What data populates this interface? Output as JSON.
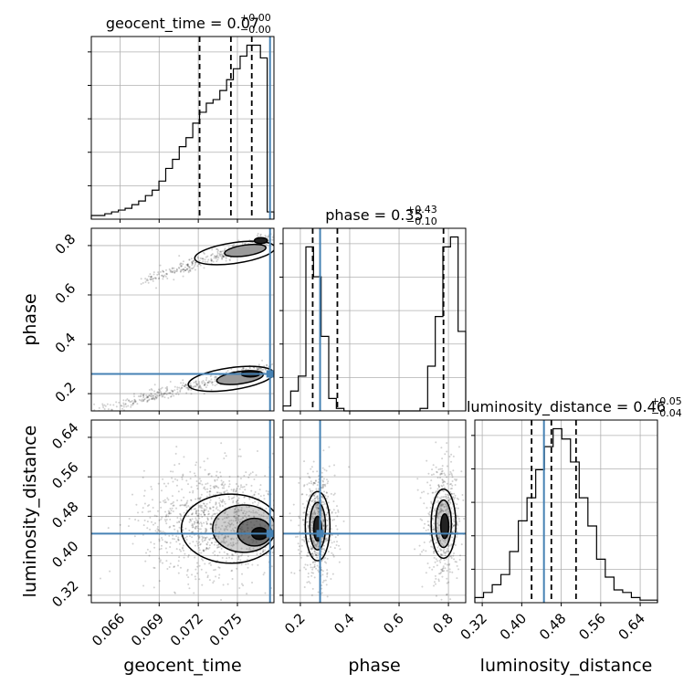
{
  "chart_data": {
    "type": "corner",
    "parameters": [
      "geocent_time",
      "phase",
      "luminosity_distance"
    ],
    "axis_labels": {
      "geocent_time": "geocent_time",
      "phase": "phase",
      "luminosity_distance": "luminosity_distance"
    },
    "titles": [
      {
        "param": "geocent_time",
        "main": "geocent_time = 0.07",
        "sup": "+0.00",
        "sub": "−0.00"
      },
      {
        "param": "phase",
        "main": "phase = 0.35",
        "sup": "+0.43",
        "sub": "−0.10"
      },
      {
        "param": "luminosity_distance",
        "main": "luminosity_distance = 0.46",
        "sup": "+0.05",
        "sub": "−0.04"
      }
    ],
    "ranges": {
      "geocent_time": [
        0.0638,
        0.0778
      ],
      "phase": [
        0.13,
        0.87
      ],
      "luminosity_distance": [
        0.305,
        0.675
      ]
    },
    "ticks": {
      "geocent_time": [
        "0.066",
        "0.069",
        "0.072",
        "0.075"
      ],
      "phase": [
        "0.2",
        "0.4",
        "0.6",
        "0.8"
      ],
      "luminosity_distance": [
        "0.32",
        "0.40",
        "0.48",
        "0.56",
        "0.64"
      ]
    },
    "truth": {
      "geocent_time": 0.0775,
      "phase": 0.28,
      "luminosity_distance": 0.445
    },
    "quantiles": {
      "geocent_time": [
        0.0721,
        0.0745,
        0.0761
      ],
      "phase": [
        0.25,
        0.35,
        0.78
      ],
      "luminosity_distance": [
        0.42,
        0.46,
        0.51
      ]
    },
    "histograms": {
      "geocent_time": [
        2,
        2,
        3,
        4,
        5,
        6,
        8,
        10,
        13,
        16,
        21,
        28,
        33,
        40,
        45,
        53,
        59,
        64,
        66,
        71,
        77,
        83,
        90,
        96,
        96,
        89,
        4
      ],
      "phase": [
        2,
        8,
        14,
        66,
        54,
        30,
        5,
        1,
        0,
        0,
        0,
        0,
        0,
        0,
        0,
        0,
        0,
        0,
        1,
        18,
        38,
        66,
        70,
        32
      ],
      "luminosity_distance": [
        2,
        4,
        7,
        11,
        20,
        32,
        41,
        52,
        61,
        68,
        64,
        55,
        41,
        30,
        17,
        10,
        5,
        4,
        2,
        1,
        1
      ]
    },
    "legend": "none",
    "grid": true
  }
}
